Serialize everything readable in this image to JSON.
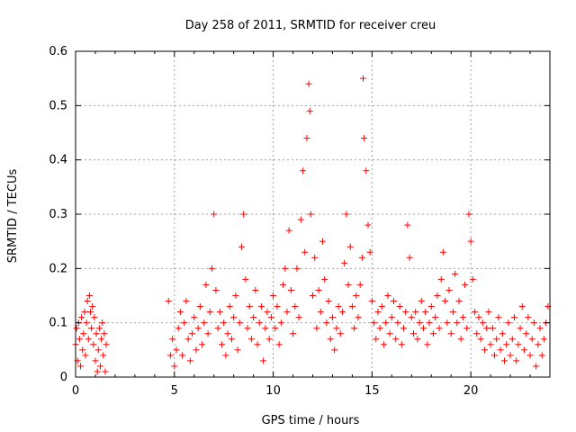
{
  "chart_data": {
    "type": "scatter",
    "title": "Day 258 of 2011, SRMTID for receiver creu",
    "xlabel": "GPS time / hours",
    "ylabel": "SRMTID / TECUs",
    "xlim": [
      0,
      24
    ],
    "ylim": [
      0,
      0.6
    ],
    "xticks": [
      0,
      5,
      10,
      15,
      20
    ],
    "xtick_labels": [
      "0",
      "5",
      "10",
      "15",
      "20"
    ],
    "yticks": [
      0,
      0.1,
      0.2,
      0.3,
      0.4,
      0.5,
      0.6
    ],
    "ytick_labels": [
      "0",
      "0.1",
      "0.2",
      "0.3",
      "0.4",
      "0.5",
      "0.6"
    ],
    "grid": true,
    "marker": "+",
    "marker_color": "#ff0000",
    "series": [
      {
        "name": "SRMTID",
        "points": [
          [
            0.0,
            0.06
          ],
          [
            0.05,
            0.09
          ],
          [
            0.1,
            0.03
          ],
          [
            0.15,
            0.1
          ],
          [
            0.2,
            0.07
          ],
          [
            0.25,
            0.02
          ],
          [
            0.3,
            0.11
          ],
          [
            0.35,
            0.05
          ],
          [
            0.4,
            0.08
          ],
          [
            0.45,
            0.12
          ],
          [
            0.5,
            0.04
          ],
          [
            0.55,
            0.1
          ],
          [
            0.6,
            0.14
          ],
          [
            0.65,
            0.07
          ],
          [
            0.7,
            0.15
          ],
          [
            0.75,
            0.12
          ],
          [
            0.8,
            0.09
          ],
          [
            0.85,
            0.13
          ],
          [
            0.9,
            0.06
          ],
          [
            0.95,
            0.11
          ],
          [
            1.0,
            0.03
          ],
          [
            1.05,
            0.08
          ],
          [
            1.1,
            0.01
          ],
          [
            1.15,
            0.05
          ],
          [
            1.2,
            0.09
          ],
          [
            1.25,
            0.02
          ],
          [
            1.3,
            0.07
          ],
          [
            1.35,
            0.1
          ],
          [
            1.4,
            0.04
          ],
          [
            1.45,
            0.08
          ],
          [
            1.5,
            0.01
          ],
          [
            1.55,
            0.06
          ],
          [
            4.7,
            0.14
          ],
          [
            4.8,
            0.04
          ],
          [
            4.9,
            0.07
          ],
          [
            5.0,
            0.02
          ],
          [
            5.1,
            0.05
          ],
          [
            5.2,
            0.09
          ],
          [
            5.3,
            0.12
          ],
          [
            5.4,
            0.04
          ],
          [
            5.5,
            0.1
          ],
          [
            5.6,
            0.14
          ],
          [
            5.7,
            0.07
          ],
          [
            5.8,
            0.03
          ],
          [
            5.9,
            0.08
          ],
          [
            6.0,
            0.11
          ],
          [
            6.1,
            0.05
          ],
          [
            6.2,
            0.09
          ],
          [
            6.3,
            0.13
          ],
          [
            6.4,
            0.06
          ],
          [
            6.5,
            0.1
          ],
          [
            6.6,
            0.17
          ],
          [
            6.7,
            0.08
          ],
          [
            6.8,
            0.12
          ],
          [
            6.9,
            0.2
          ],
          [
            7.0,
            0.3
          ],
          [
            7.1,
            0.16
          ],
          [
            7.2,
            0.09
          ],
          [
            7.3,
            0.12
          ],
          [
            7.4,
            0.06
          ],
          [
            7.5,
            0.1
          ],
          [
            7.6,
            0.04
          ],
          [
            7.7,
            0.08
          ],
          [
            7.8,
            0.13
          ],
          [
            7.9,
            0.07
          ],
          [
            8.0,
            0.11
          ],
          [
            8.1,
            0.15
          ],
          [
            8.2,
            0.05
          ],
          [
            8.3,
            0.1
          ],
          [
            8.4,
            0.24
          ],
          [
            8.5,
            0.3
          ],
          [
            8.6,
            0.18
          ],
          [
            8.7,
            0.09
          ],
          [
            8.8,
            0.13
          ],
          [
            8.9,
            0.07
          ],
          [
            9.0,
            0.11
          ],
          [
            9.1,
            0.16
          ],
          [
            9.2,
            0.06
          ],
          [
            9.3,
            0.1
          ],
          [
            9.4,
            0.13
          ],
          [
            9.5,
            0.03
          ],
          [
            9.6,
            0.09
          ],
          [
            9.7,
            0.12
          ],
          [
            9.8,
            0.07
          ],
          [
            9.9,
            0.11
          ],
          [
            10.0,
            0.15
          ],
          [
            10.1,
            0.09
          ],
          [
            10.2,
            0.13
          ],
          [
            10.3,
            0.06
          ],
          [
            10.4,
            0.1
          ],
          [
            10.5,
            0.17
          ],
          [
            10.6,
            0.2
          ],
          [
            10.7,
            0.12
          ],
          [
            10.8,
            0.27
          ],
          [
            10.9,
            0.16
          ],
          [
            11.0,
            0.08
          ],
          [
            11.1,
            0.13
          ],
          [
            11.2,
            0.2
          ],
          [
            11.3,
            0.11
          ],
          [
            11.4,
            0.29
          ],
          [
            11.5,
            0.38
          ],
          [
            11.6,
            0.23
          ],
          [
            11.7,
            0.44
          ],
          [
            11.8,
            0.54
          ],
          [
            11.85,
            0.49
          ],
          [
            11.9,
            0.3
          ],
          [
            12.0,
            0.15
          ],
          [
            12.1,
            0.22
          ],
          [
            12.2,
            0.09
          ],
          [
            12.3,
            0.16
          ],
          [
            12.4,
            0.12
          ],
          [
            12.5,
            0.25
          ],
          [
            12.6,
            0.18
          ],
          [
            12.7,
            0.1
          ],
          [
            12.8,
            0.14
          ],
          [
            12.9,
            0.07
          ],
          [
            13.0,
            0.11
          ],
          [
            13.1,
            0.05
          ],
          [
            13.2,
            0.09
          ],
          [
            13.3,
            0.13
          ],
          [
            13.4,
            0.08
          ],
          [
            13.5,
            0.12
          ],
          [
            13.6,
            0.21
          ],
          [
            13.7,
            0.3
          ],
          [
            13.8,
            0.17
          ],
          [
            13.9,
            0.24
          ],
          [
            14.0,
            0.13
          ],
          [
            14.1,
            0.09
          ],
          [
            14.2,
            0.15
          ],
          [
            14.3,
            0.11
          ],
          [
            14.4,
            0.17
          ],
          [
            14.5,
            0.22
          ],
          [
            14.55,
            0.55
          ],
          [
            14.6,
            0.44
          ],
          [
            14.7,
            0.38
          ],
          [
            14.8,
            0.28
          ],
          [
            14.9,
            0.23
          ],
          [
            15.0,
            0.14
          ],
          [
            15.1,
            0.1
          ],
          [
            15.2,
            0.07
          ],
          [
            15.3,
            0.12
          ],
          [
            15.4,
            0.09
          ],
          [
            15.5,
            0.13
          ],
          [
            15.6,
            0.06
          ],
          [
            15.7,
            0.1
          ],
          [
            15.8,
            0.15
          ],
          [
            15.9,
            0.08
          ],
          [
            16.0,
            0.11
          ],
          [
            16.1,
            0.14
          ],
          [
            16.2,
            0.07
          ],
          [
            16.3,
            0.1
          ],
          [
            16.4,
            0.13
          ],
          [
            16.5,
            0.06
          ],
          [
            16.6,
            0.09
          ],
          [
            16.7,
            0.12
          ],
          [
            16.8,
            0.28
          ],
          [
            16.9,
            0.22
          ],
          [
            17.0,
            0.11
          ],
          [
            17.1,
            0.08
          ],
          [
            17.2,
            0.12
          ],
          [
            17.3,
            0.07
          ],
          [
            17.4,
            0.1
          ],
          [
            17.5,
            0.14
          ],
          [
            17.6,
            0.09
          ],
          [
            17.7,
            0.12
          ],
          [
            17.8,
            0.06
          ],
          [
            17.9,
            0.1
          ],
          [
            18.0,
            0.13
          ],
          [
            18.1,
            0.08
          ],
          [
            18.2,
            0.11
          ],
          [
            18.3,
            0.15
          ],
          [
            18.4,
            0.09
          ],
          [
            18.5,
            0.18
          ],
          [
            18.6,
            0.23
          ],
          [
            18.7,
            0.14
          ],
          [
            18.8,
            0.1
          ],
          [
            18.9,
            0.16
          ],
          [
            19.0,
            0.08
          ],
          [
            19.1,
            0.12
          ],
          [
            19.2,
            0.19
          ],
          [
            19.3,
            0.1
          ],
          [
            19.4,
            0.14
          ],
          [
            19.5,
            0.07
          ],
          [
            19.6,
            0.11
          ],
          [
            19.7,
            0.17
          ],
          [
            19.8,
            0.09
          ],
          [
            19.9,
            0.3
          ],
          [
            20.0,
            0.25
          ],
          [
            20.1,
            0.18
          ],
          [
            20.2,
            0.12
          ],
          [
            20.3,
            0.08
          ],
          [
            20.4,
            0.11
          ],
          [
            20.5,
            0.07
          ],
          [
            20.6,
            0.1
          ],
          [
            20.7,
            0.05
          ],
          [
            20.8,
            0.09
          ],
          [
            20.9,
            0.12
          ],
          [
            21.0,
            0.06
          ],
          [
            21.1,
            0.09
          ],
          [
            21.2,
            0.04
          ],
          [
            21.3,
            0.07
          ],
          [
            21.4,
            0.11
          ],
          [
            21.5,
            0.05
          ],
          [
            21.6,
            0.08
          ],
          [
            21.7,
            0.03
          ],
          [
            21.8,
            0.06
          ],
          [
            21.9,
            0.1
          ],
          [
            22.0,
            0.04
          ],
          [
            22.1,
            0.07
          ],
          [
            22.2,
            0.11
          ],
          [
            22.3,
            0.03
          ],
          [
            22.4,
            0.06
          ],
          [
            22.5,
            0.09
          ],
          [
            22.6,
            0.13
          ],
          [
            22.7,
            0.05
          ],
          [
            22.8,
            0.08
          ],
          [
            22.9,
            0.11
          ],
          [
            23.0,
            0.04
          ],
          [
            23.1,
            0.07
          ],
          [
            23.2,
            0.1
          ],
          [
            23.3,
            0.02
          ],
          [
            23.4,
            0.06
          ],
          [
            23.5,
            0.09
          ],
          [
            23.6,
            0.04
          ],
          [
            23.7,
            0.07
          ],
          [
            23.8,
            0.1
          ],
          [
            23.9,
            0.13
          ]
        ]
      }
    ]
  }
}
